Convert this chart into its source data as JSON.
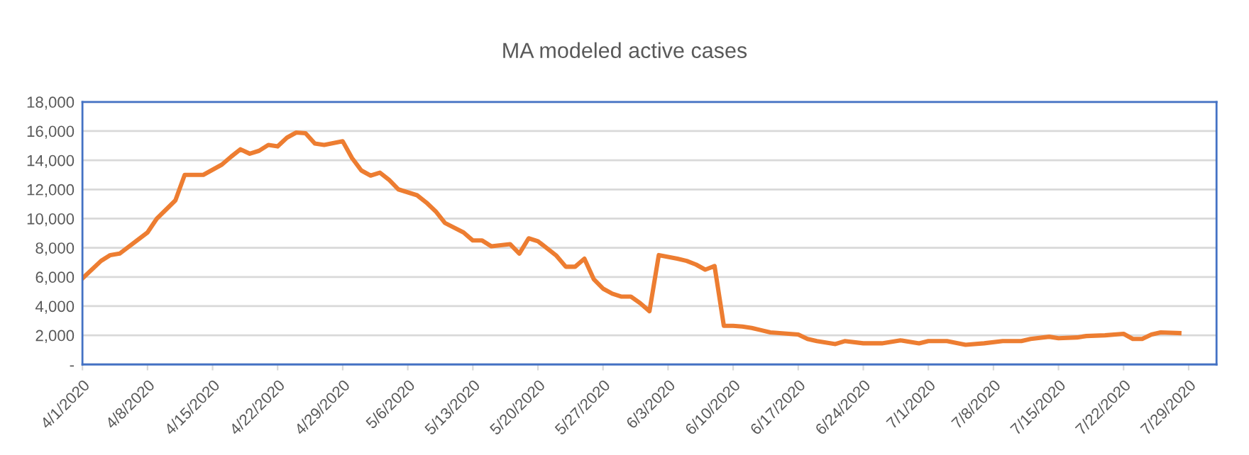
{
  "chart_data": {
    "type": "line",
    "title": "MA modeled active cases",
    "x": [
      "2020-04-01",
      "2020-04-03",
      "2020-04-04",
      "2020-04-05",
      "2020-04-08",
      "2020-04-09",
      "2020-04-11",
      "2020-04-12",
      "2020-04-14",
      "2020-04-16",
      "2020-04-17",
      "2020-04-18",
      "2020-04-19",
      "2020-04-20",
      "2020-04-21",
      "2020-04-22",
      "2020-04-23",
      "2020-04-24",
      "2020-04-25",
      "2020-04-26",
      "2020-04-27",
      "2020-04-29",
      "2020-04-30",
      "2020-05-01",
      "2020-05-02",
      "2020-05-03",
      "2020-05-04",
      "2020-05-05",
      "2020-05-07",
      "2020-05-08",
      "2020-05-09",
      "2020-05-10",
      "2020-05-12",
      "2020-05-13",
      "2020-05-14",
      "2020-05-15",
      "2020-05-17",
      "2020-05-18",
      "2020-05-19",
      "2020-05-20",
      "2020-05-22",
      "2020-05-23",
      "2020-05-24",
      "2020-05-25",
      "2020-05-26",
      "2020-05-27",
      "2020-05-28",
      "2020-05-29",
      "2020-05-30",
      "2020-05-31",
      "2020-06-01",
      "2020-06-02",
      "2020-06-04",
      "2020-06-05",
      "2020-06-06",
      "2020-06-07",
      "2020-06-08",
      "2020-06-09",
      "2020-06-10",
      "2020-06-11",
      "2020-06-12",
      "2020-06-13",
      "2020-06-14",
      "2020-06-15",
      "2020-06-17",
      "2020-06-18",
      "2020-06-19",
      "2020-06-21",
      "2020-06-22",
      "2020-06-24",
      "2020-06-26",
      "2020-06-28",
      "2020-06-30",
      "2020-07-01",
      "2020-07-03",
      "2020-07-05",
      "2020-07-07",
      "2020-07-09",
      "2020-07-11",
      "2020-07-12",
      "2020-07-14",
      "2020-07-15",
      "2020-07-17",
      "2020-07-18",
      "2020-07-20",
      "2020-07-22",
      "2020-07-23",
      "2020-07-24",
      "2020-07-25",
      "2020-07-26",
      "2020-07-28"
    ],
    "series": [
      {
        "color": "#ed7d31",
        "values": [
          5900,
          7100,
          7500,
          7600,
          9050,
          10000,
          11250,
          13000,
          13000,
          13700,
          14250,
          14750,
          14450,
          14650,
          15050,
          14950,
          15550,
          15900,
          15850,
          15150,
          15050,
          15300,
          14150,
          13300,
          12950,
          13150,
          12650,
          12000,
          11600,
          11100,
          10500,
          9700,
          9050,
          8500,
          8500,
          8100,
          8250,
          7600,
          8650,
          8450,
          7450,
          6700,
          6700,
          7250,
          5850,
          5200,
          4850,
          4650,
          4650,
          4200,
          3650,
          7500,
          7250,
          7100,
          6850,
          6500,
          6750,
          2650,
          2650,
          2600,
          2500,
          2350,
          2200,
          2150,
          2050,
          1750,
          1600,
          1400,
          1600,
          1450,
          1450,
          1650,
          1450,
          1600,
          1600,
          1350,
          1450,
          1600,
          1600,
          1750,
          1900,
          1800,
          1850,
          1950,
          2000,
          2100,
          1750,
          1750,
          2050,
          2200,
          2150
        ]
      }
    ],
    "xlim": [
      "2020-04-01",
      "2020-08-01"
    ],
    "xticks": [
      {
        "value": "2020-04-01",
        "label": "4/1/2020"
      },
      {
        "value": "2020-04-08",
        "label": "4/8/2020"
      },
      {
        "value": "2020-04-15",
        "label": "4/15/2020"
      },
      {
        "value": "2020-04-22",
        "label": "4/22/2020"
      },
      {
        "value": "2020-04-29",
        "label": "4/29/2020"
      },
      {
        "value": "2020-05-06",
        "label": "5/6/2020"
      },
      {
        "value": "2020-05-13",
        "label": "5/13/2020"
      },
      {
        "value": "2020-05-20",
        "label": "5/20/2020"
      },
      {
        "value": "2020-05-27",
        "label": "5/27/2020"
      },
      {
        "value": "2020-06-03",
        "label": "6/3/2020"
      },
      {
        "value": "2020-06-10",
        "label": "6/10/2020"
      },
      {
        "value": "2020-06-17",
        "label": "6/17/2020"
      },
      {
        "value": "2020-06-24",
        "label": "6/24/2020"
      },
      {
        "value": "2020-07-01",
        "label": "7/1/2020"
      },
      {
        "value": "2020-07-08",
        "label": "7/8/2020"
      },
      {
        "value": "2020-07-15",
        "label": "7/15/2020"
      },
      {
        "value": "2020-07-22",
        "label": "7/22/2020"
      },
      {
        "value": "2020-07-29",
        "label": "7/29/2020"
      }
    ],
    "ylim": [
      0,
      18000
    ],
    "yticks": [
      {
        "value": 0,
        "label": "-"
      },
      {
        "value": 2000,
        "label": "2,000"
      },
      {
        "value": 4000,
        "label": "4,000"
      },
      {
        "value": 6000,
        "label": "6,000"
      },
      {
        "value": 8000,
        "label": "8,000"
      },
      {
        "value": 10000,
        "label": "10,000"
      },
      {
        "value": 12000,
        "label": "12,000"
      },
      {
        "value": 14000,
        "label": "14,000"
      },
      {
        "value": 16000,
        "label": "16,000"
      },
      {
        "value": 18000,
        "label": "18,000"
      }
    ],
    "grid": "y",
    "marker": "none",
    "line_style": "solid"
  }
}
